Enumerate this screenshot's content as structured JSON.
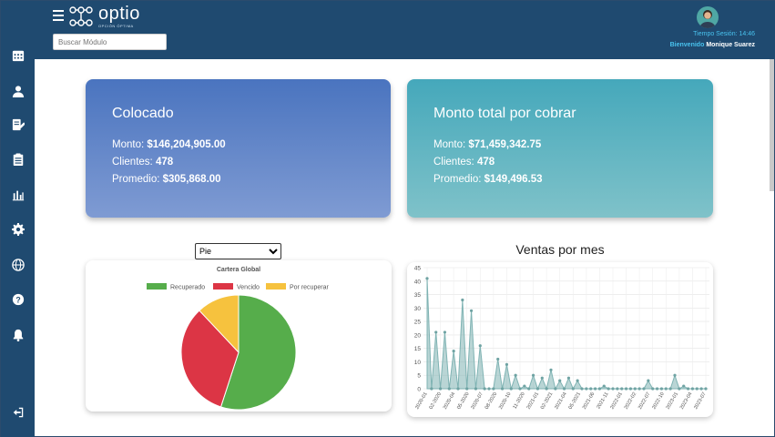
{
  "header": {
    "logo_text": "optio",
    "logo_subtitle": "OPCIÓN ÓPTIMA",
    "search_placeholder": "Buscar Módulo",
    "session_label": "Tiempo Sesión: 14:46",
    "welcome_label": "Bienvenido",
    "user_name": "Monique Suarez"
  },
  "sidebar": {
    "items": [
      {
        "icon": "calendar-icon"
      },
      {
        "icon": "user-icon"
      },
      {
        "icon": "edit-document-icon"
      },
      {
        "icon": "clipboard-icon"
      },
      {
        "icon": "bar-chart-icon"
      },
      {
        "icon": "gear-icon"
      },
      {
        "icon": "globe-icon"
      },
      {
        "icon": "help-icon"
      },
      {
        "icon": "bell-icon"
      }
    ],
    "logout_icon": "logout-icon"
  },
  "cards": {
    "colocado": {
      "title": "Colocado",
      "monto_label": "Monto: ",
      "monto_value": "$146,204,905.00",
      "clientes_label": "Clientes: ",
      "clientes_value": "478",
      "promedio_label": "Promedio: ",
      "promedio_value": "$305,868.00"
    },
    "cobrar": {
      "title": "Monto total por cobrar",
      "monto_label": "Monto: ",
      "monto_value": "$71,459,342.75",
      "clientes_label": "Clientes: ",
      "clientes_value": "478",
      "promedio_label": "Promedio: ",
      "promedio_value": "$149,496.53"
    }
  },
  "chart_type_select": {
    "selected": "Pie",
    "options": [
      "Pie"
    ]
  },
  "colors": {
    "recuperado": "#56ad4b",
    "vencido": "#dc3545",
    "por_recuperar": "#f6c23e",
    "line": "#7fb3b3"
  },
  "chart_data": [
    {
      "type": "pie",
      "title": "Cartera Global",
      "legend_position": "top",
      "categories": [
        "Recuperado",
        "Vencido",
        "Por recuperar"
      ],
      "values": [
        55,
        33,
        12
      ]
    },
    {
      "type": "area",
      "title": "Ventas por mes",
      "ylim": [
        0,
        45
      ],
      "yticks": [
        0,
        5,
        10,
        15,
        20,
        25,
        30,
        35,
        40,
        45
      ],
      "grid": true,
      "tick_labels": [
        "2020-01",
        "02-2020",
        "2020-04",
        "05-2020",
        "2020-07",
        "08-2020",
        "2020-10",
        "11-2020",
        "2021-01",
        "02-2021",
        "2021-04",
        "05-2021",
        "2021-06",
        "2021-11",
        "2022-01",
        "2022-02",
        "2022-07",
        "2022-10",
        "2023-01",
        "2023-04",
        "2023-07"
      ],
      "values": [
        41,
        0,
        21,
        0,
        21,
        0,
        14,
        0,
        33,
        0,
        29,
        0,
        16,
        0,
        0,
        0,
        11,
        0,
        9,
        0,
        5,
        0,
        1,
        0,
        5,
        0,
        4,
        0,
        7,
        0,
        3,
        0,
        4,
        0,
        3,
        0,
        0,
        0,
        0,
        0,
        1,
        0,
        0,
        0,
        0,
        0,
        0,
        0,
        0,
        0,
        3,
        0,
        0,
        0,
        0,
        0,
        5,
        0,
        1,
        0,
        0,
        0,
        0,
        0
      ]
    }
  ]
}
